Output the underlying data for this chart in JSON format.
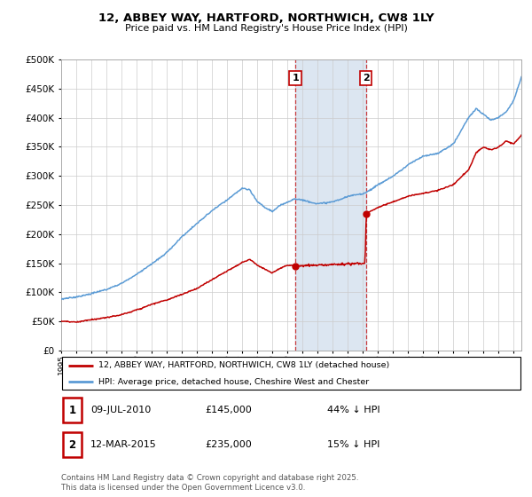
{
  "title": "12, ABBEY WAY, HARTFORD, NORTHWICH, CW8 1LY",
  "subtitle": "Price paid vs. HM Land Registry's House Price Index (HPI)",
  "ylim": [
    0,
    500000
  ],
  "yticks": [
    0,
    50000,
    100000,
    150000,
    200000,
    250000,
    300000,
    350000,
    400000,
    450000,
    500000
  ],
  "xlim_start": 1995.0,
  "xlim_end": 2025.5,
  "transaction1": {
    "date_year": 2010.52,
    "price": 145000,
    "label": "1",
    "date_str": "09-JUL-2010",
    "pct": "44% ↓ HPI"
  },
  "transaction2": {
    "date_year": 2015.19,
    "price": 235000,
    "label": "2",
    "date_str": "12-MAR-2015",
    "pct": "15% ↓ HPI"
  },
  "hpi_color": "#5b9bd5",
  "price_color": "#c00000",
  "shaded_color": "#dce6f1",
  "legend1_label": "12, ABBEY WAY, HARTFORD, NORTHWICH, CW8 1LY (detached house)",
  "legend2_label": "HPI: Average price, detached house, Cheshire West and Chester",
  "footnote": "Contains HM Land Registry data © Crown copyright and database right 2025.\nThis data is licensed under the Open Government Licence v3.0.",
  "table_rows": [
    {
      "num": "1",
      "date": "09-JUL-2010",
      "price": "£145,000",
      "pct": "44% ↓ HPI"
    },
    {
      "num": "2",
      "date": "12-MAR-2015",
      "price": "£235,000",
      "pct": "15% ↓ HPI"
    }
  ],
  "hpi_keypoints_x": [
    1995,
    1996,
    1997,
    1998,
    1999,
    2000,
    2001,
    2002,
    2003,
    2004,
    2005,
    2006,
    2007,
    2007.5,
    2008,
    2008.5,
    2009,
    2009.5,
    2010,
    2010.5,
    2011,
    2011.5,
    2012,
    2013,
    2014,
    2015,
    2015.2,
    2016,
    2017,
    2018,
    2019,
    2020,
    2021,
    2022,
    2022.5,
    2023,
    2023.5,
    2024,
    2024.5,
    2025,
    2025.5
  ],
  "hpi_keypoints_y": [
    88000,
    92000,
    98000,
    105000,
    115000,
    130000,
    148000,
    168000,
    195000,
    218000,
    240000,
    258000,
    278000,
    275000,
    255000,
    245000,
    238000,
    248000,
    255000,
    260000,
    258000,
    255000,
    252000,
    255000,
    265000,
    270000,
    272000,
    285000,
    300000,
    320000,
    335000,
    340000,
    355000,
    400000,
    415000,
    405000,
    395000,
    400000,
    410000,
    430000,
    470000
  ],
  "price_keypoints_x": [
    1995,
    1996,
    1997,
    1998,
    1999,
    2000,
    2001,
    2002,
    2003,
    2004,
    2005,
    2006,
    2007,
    2007.5,
    2008,
    2008.5,
    2009,
    2009.5,
    2010,
    2010.52,
    2010.6,
    2011,
    2012,
    2013,
    2014,
    2015.0,
    2015.19,
    2015.25,
    2016,
    2017,
    2018,
    2019,
    2020,
    2021,
    2022,
    2022.5,
    2023,
    2023.5,
    2024,
    2024.5,
    2025,
    2025.5
  ],
  "price_keypoints_y": [
    50000,
    48000,
    52000,
    55000,
    60000,
    68000,
    78000,
    86000,
    95000,
    105000,
    120000,
    135000,
    150000,
    155000,
    145000,
    138000,
    132000,
    140000,
    145000,
    145000,
    145000,
    145000,
    143000,
    145000,
    147000,
    150000,
    235000,
    235000,
    245000,
    255000,
    265000,
    270000,
    275000,
    285000,
    310000,
    340000,
    350000,
    345000,
    350000,
    360000,
    355000,
    370000
  ]
}
